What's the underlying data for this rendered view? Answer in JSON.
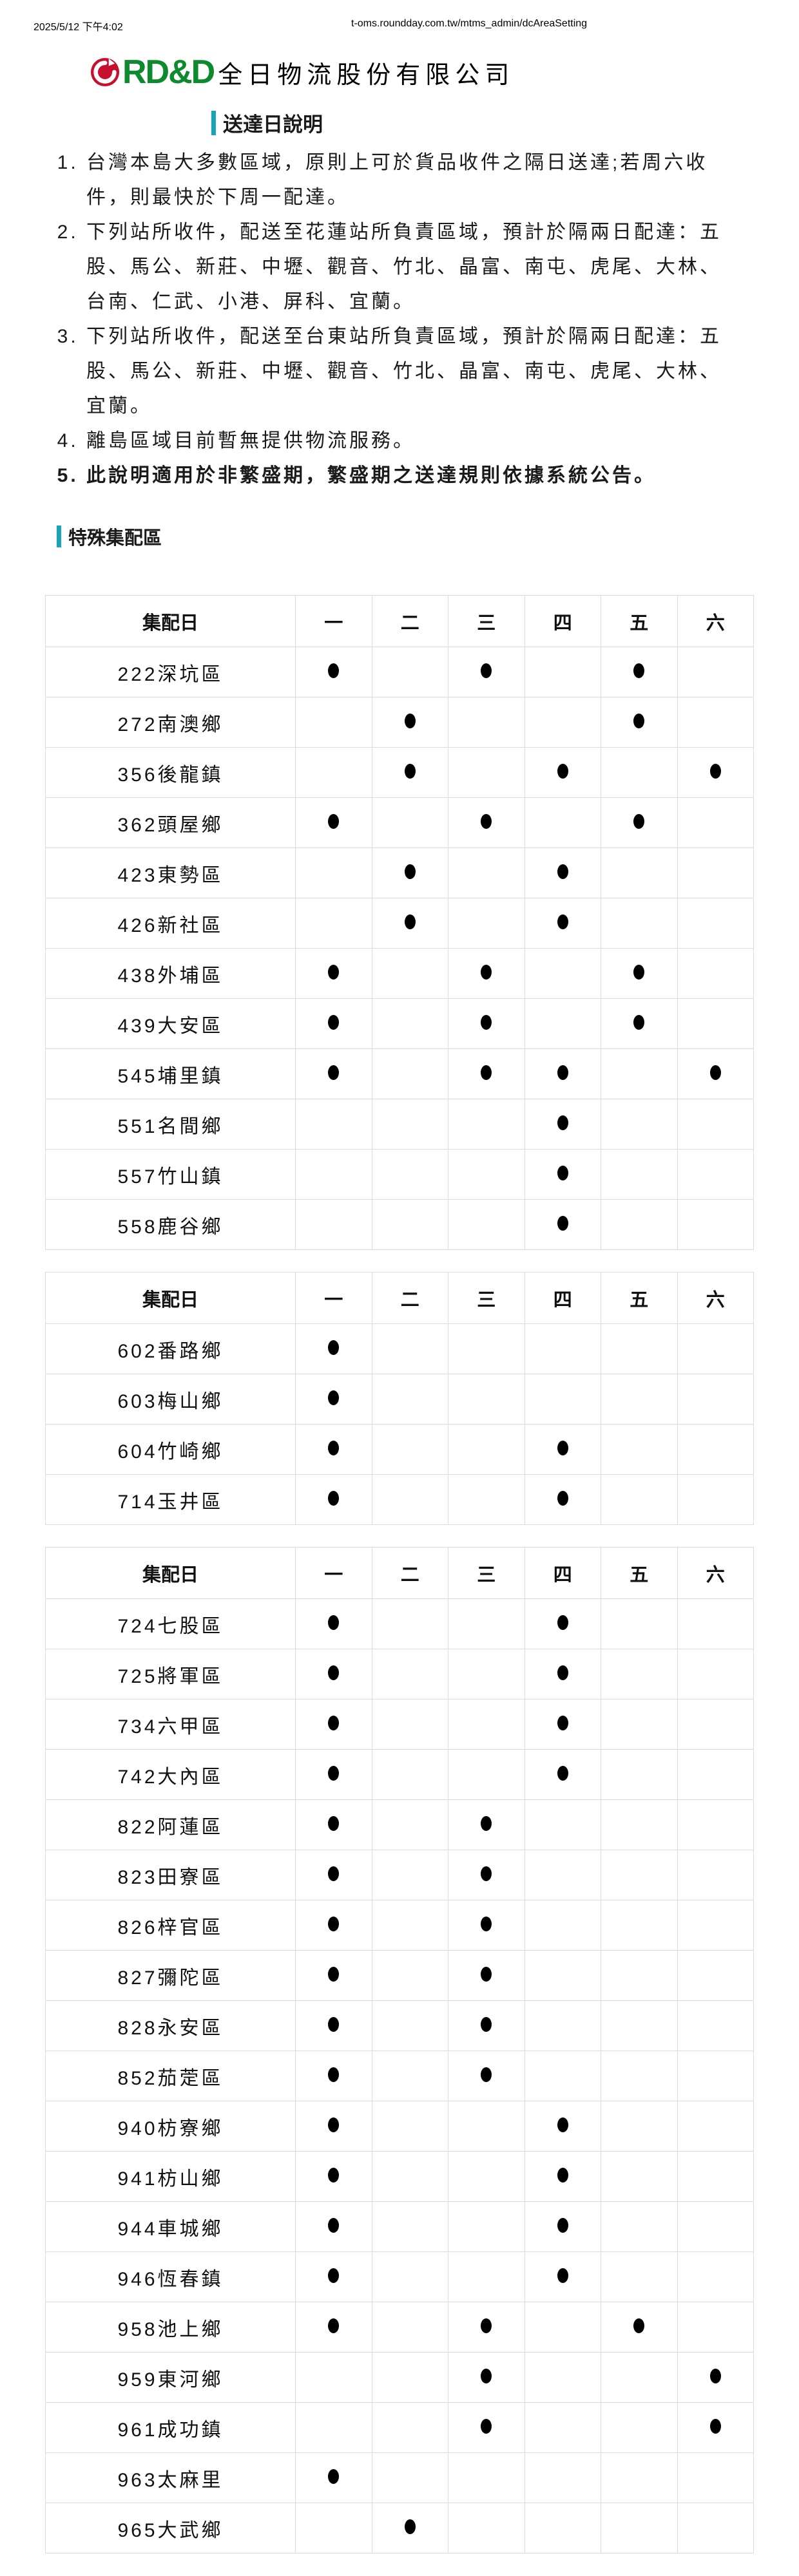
{
  "print_header": {
    "datetime": "2025/5/12 下午4:02",
    "url": "t-oms.roundday.com.tw/mtms_admin/dcAreaSetting"
  },
  "company": {
    "logo_text": "RD&D",
    "name": "全日物流股份有限公司"
  },
  "delivery_notes": {
    "title": "送達日說明",
    "items": [
      {
        "text": "台灣本島大多數區域，原則上可於貨品收件之隔日送達;若周六收件，則最快於下周一配達。",
        "bold": false
      },
      {
        "text": "下列站所收件，配送至花蓮站所負責區域，預計於隔兩日配達：五股、馬公、新莊、中壢、觀音、竹北、晶富、南屯、虎尾、大林、台南、仁武、小港、屏科、宜蘭。",
        "bold": false
      },
      {
        "text": "下列站所收件，配送至台東站所負責區域，預計於隔兩日配達：五股、馬公、新莊、中壢、觀音、竹北、晶富、南屯、虎尾、大林、宜蘭。",
        "bold": false
      },
      {
        "text": "離島區域目前暫無提供物流服務。",
        "bold": false
      },
      {
        "text": "此說明適用於非繁盛期，繁盛期之送達規則依據系統公告。",
        "bold": true
      }
    ]
  },
  "special_zones": {
    "title": "特殊集配區",
    "day_header": "集配日",
    "days": [
      "一",
      "二",
      "三",
      "四",
      "五",
      "六"
    ],
    "dot_symbol": "●",
    "tables": [
      {
        "rows": [
          {
            "area": "222深坑區",
            "days": [
              1,
              0,
              1,
              0,
              1,
              0
            ]
          },
          {
            "area": "272南澳鄉",
            "days": [
              0,
              1,
              0,
              0,
              1,
              0
            ]
          },
          {
            "area": "356後龍鎮",
            "days": [
              0,
              1,
              0,
              1,
              0,
              1
            ]
          },
          {
            "area": "362頭屋鄉",
            "days": [
              1,
              0,
              1,
              0,
              1,
              0
            ]
          },
          {
            "area": "423東勢區",
            "days": [
              0,
              1,
              0,
              1,
              0,
              0
            ]
          },
          {
            "area": "426新社區",
            "days": [
              0,
              1,
              0,
              1,
              0,
              0
            ]
          },
          {
            "area": "438外埔區",
            "days": [
              1,
              0,
              1,
              0,
              1,
              0
            ]
          },
          {
            "area": "439大安區",
            "days": [
              1,
              0,
              1,
              0,
              1,
              0
            ]
          },
          {
            "area": "545埔里鎮",
            "days": [
              1,
              0,
              1,
              1,
              0,
              1
            ]
          },
          {
            "area": "551名間鄉",
            "days": [
              0,
              0,
              0,
              1,
              0,
              0
            ]
          },
          {
            "area": "557竹山鎮",
            "days": [
              0,
              0,
              0,
              1,
              0,
              0
            ]
          },
          {
            "area": "558鹿谷鄉",
            "days": [
              0,
              0,
              0,
              1,
              0,
              0
            ]
          }
        ]
      },
      {
        "rows": [
          {
            "area": "602番路鄉",
            "days": [
              1,
              0,
              0,
              0,
              0,
              0
            ]
          },
          {
            "area": "603梅山鄉",
            "days": [
              1,
              0,
              0,
              0,
              0,
              0
            ]
          },
          {
            "area": "604竹崎鄉",
            "days": [
              1,
              0,
              0,
              1,
              0,
              0
            ]
          },
          {
            "area": "714玉井區",
            "days": [
              1,
              0,
              0,
              1,
              0,
              0
            ]
          }
        ]
      },
      {
        "rows": [
          {
            "area": "724七股區",
            "days": [
              1,
              0,
              0,
              1,
              0,
              0
            ]
          },
          {
            "area": "725將軍區",
            "days": [
              1,
              0,
              0,
              1,
              0,
              0
            ]
          },
          {
            "area": "734六甲區",
            "days": [
              1,
              0,
              0,
              1,
              0,
              0
            ]
          },
          {
            "area": "742大內區",
            "days": [
              1,
              0,
              0,
              1,
              0,
              0
            ]
          },
          {
            "area": "822阿蓮區",
            "days": [
              1,
              0,
              1,
              0,
              0,
              0
            ]
          },
          {
            "area": "823田寮區",
            "days": [
              1,
              0,
              1,
              0,
              0,
              0
            ]
          },
          {
            "area": "826梓官區",
            "days": [
              1,
              0,
              1,
              0,
              0,
              0
            ]
          },
          {
            "area": "827彌陀區",
            "days": [
              1,
              0,
              1,
              0,
              0,
              0
            ]
          },
          {
            "area": "828永安區",
            "days": [
              1,
              0,
              1,
              0,
              0,
              0
            ]
          },
          {
            "area": "852茄萣區",
            "days": [
              1,
              0,
              1,
              0,
              0,
              0
            ]
          },
          {
            "area": "940枋寮鄉",
            "days": [
              1,
              0,
              0,
              1,
              0,
              0
            ]
          },
          {
            "area": "941枋山鄉",
            "days": [
              1,
              0,
              0,
              1,
              0,
              0
            ]
          },
          {
            "area": "944車城鄉",
            "days": [
              1,
              0,
              0,
              1,
              0,
              0
            ]
          },
          {
            "area": "946恆春鎮",
            "days": [
              1,
              0,
              0,
              1,
              0,
              0
            ]
          },
          {
            "area": "958池上鄉",
            "days": [
              1,
              0,
              1,
              0,
              1,
              0
            ]
          },
          {
            "area": "959東河鄉",
            "days": [
              0,
              0,
              1,
              0,
              0,
              1
            ]
          },
          {
            "area": "961成功鎮",
            "days": [
              0,
              0,
              1,
              0,
              0,
              1
            ]
          },
          {
            "area": "963太麻里",
            "days": [
              1,
              0,
              0,
              0,
              0,
              0
            ]
          },
          {
            "area": "965大武鄉",
            "days": [
              0,
              1,
              0,
              0,
              0,
              0
            ]
          }
        ]
      }
    ]
  },
  "colors": {
    "accent_teal": "#1aa3b8",
    "logo_green": "#0d8a2e",
    "logo_red": "#c8102e",
    "table_border": "#dcdcdc",
    "dot": "#000000"
  }
}
